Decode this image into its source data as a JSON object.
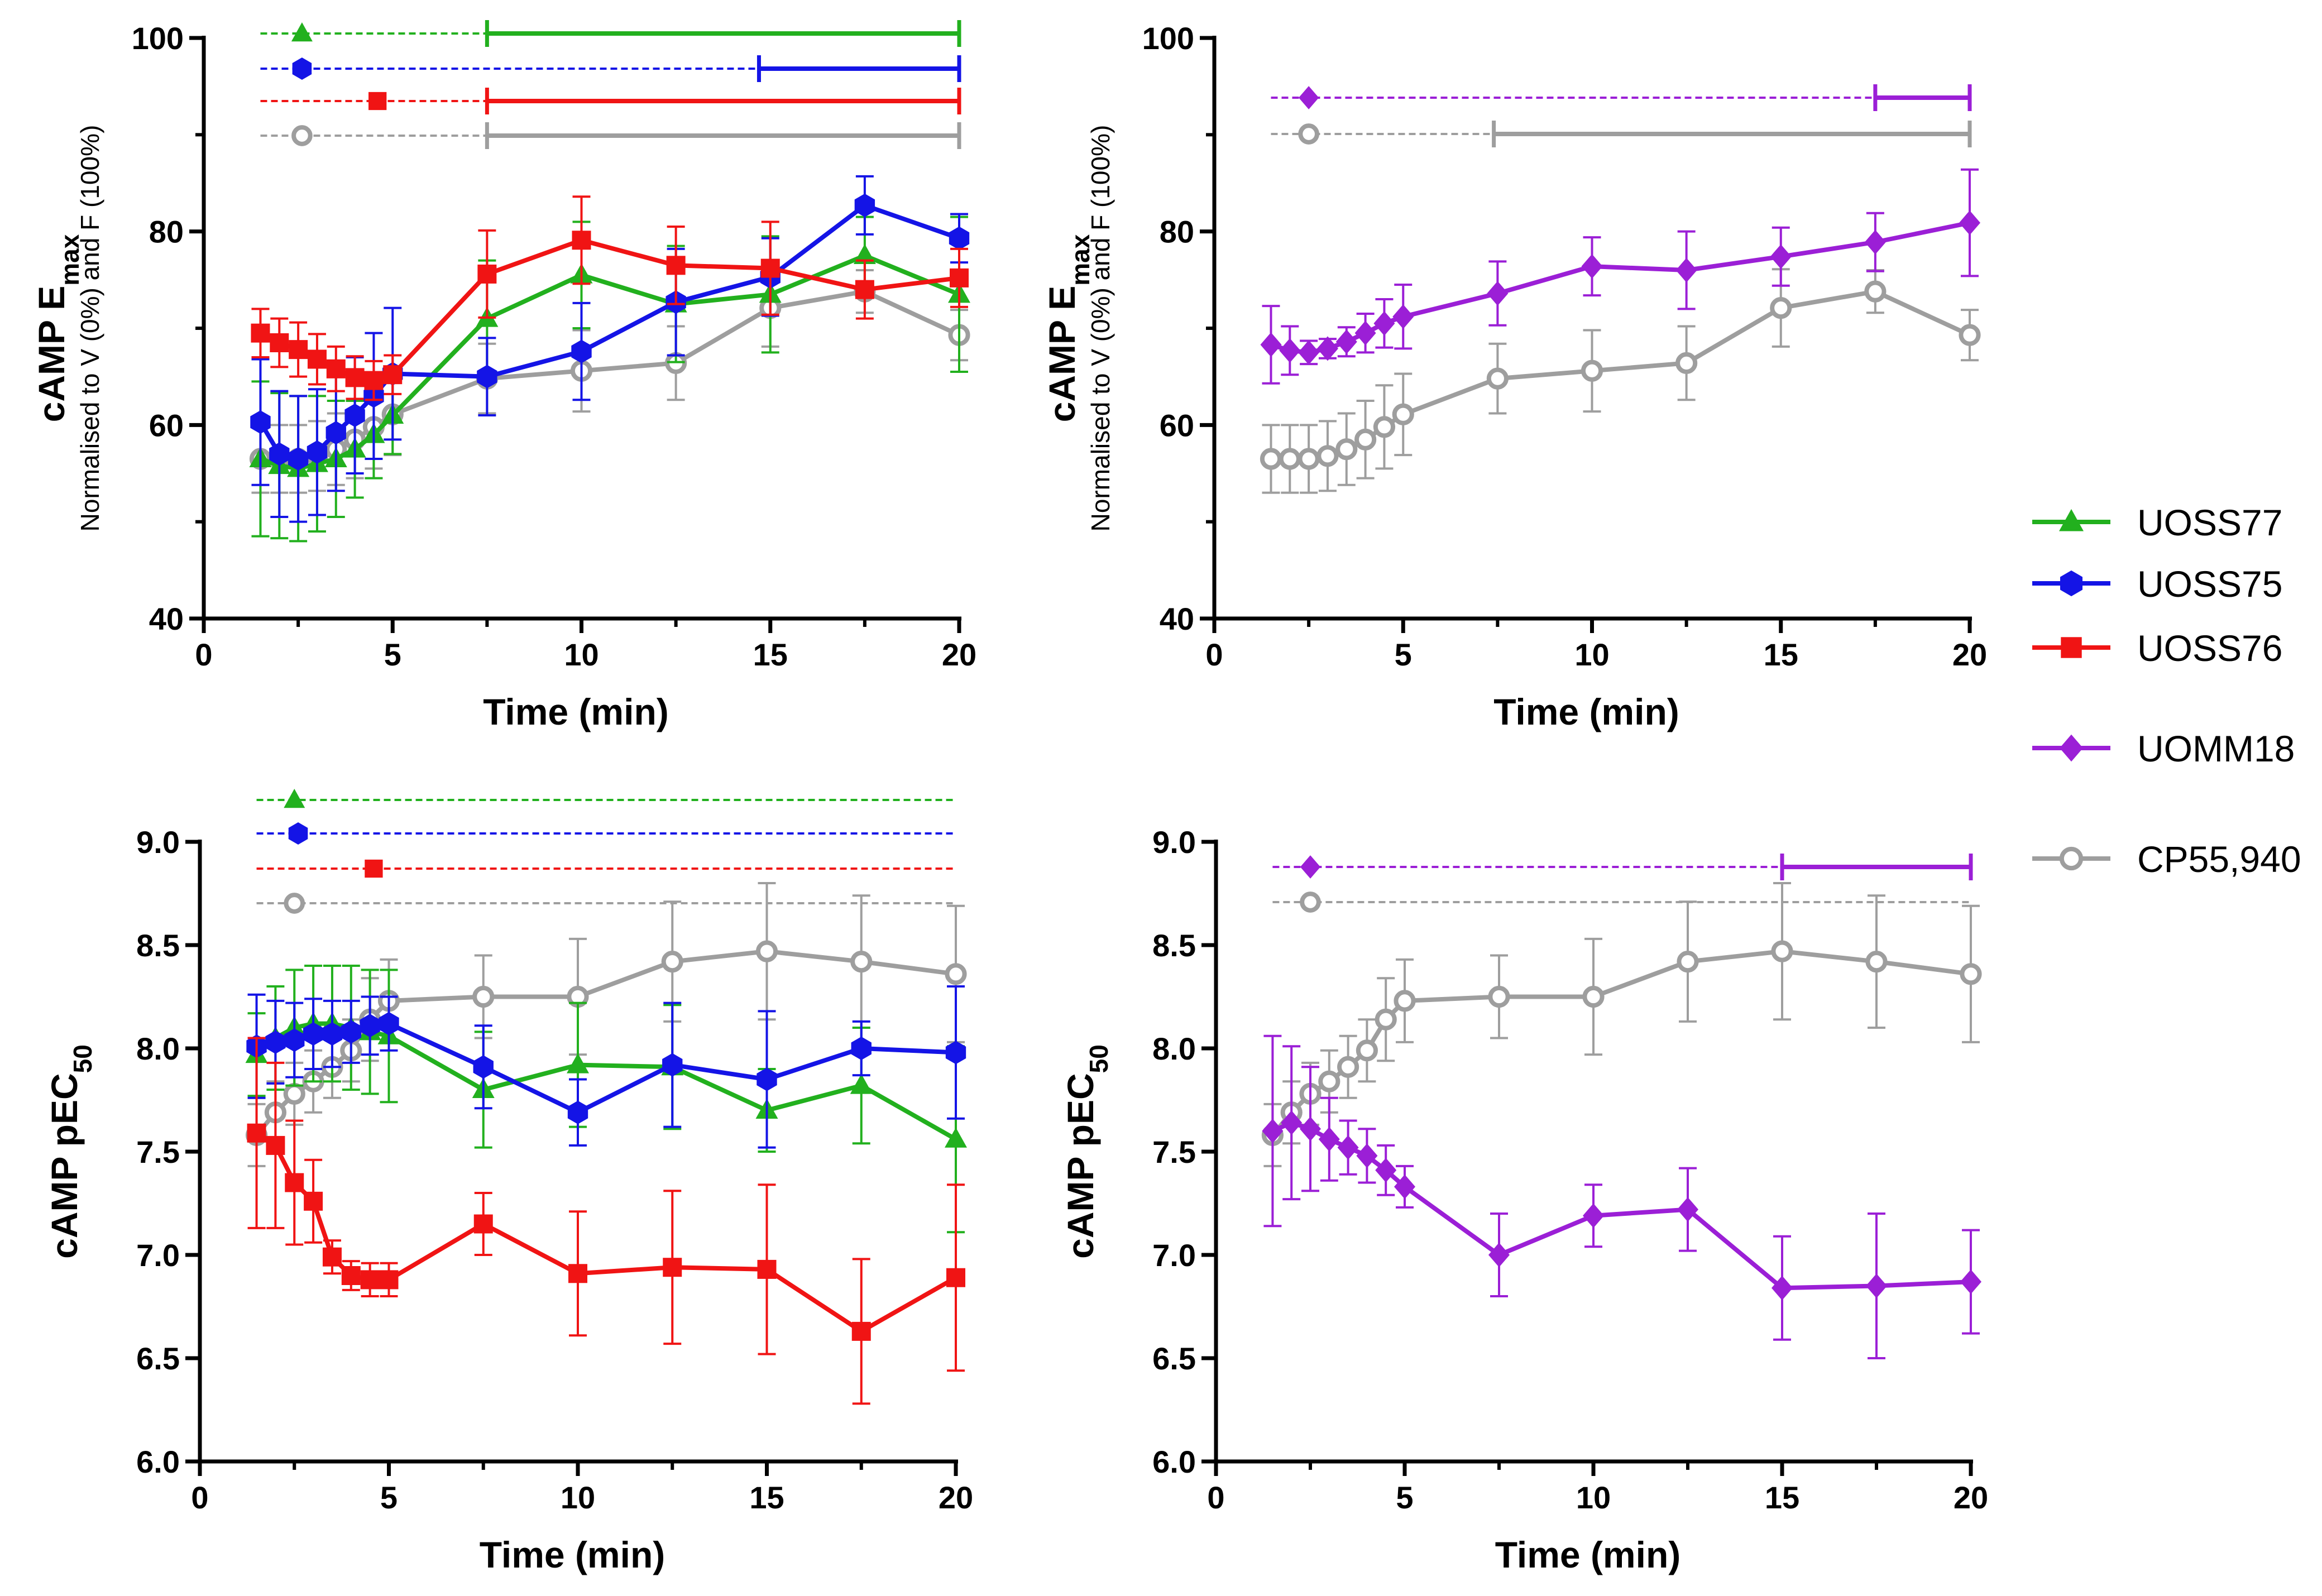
{
  "legend": [
    {
      "name": "UOSS77",
      "color": "#22b01e",
      "marker": "triangle"
    },
    {
      "name": "UOSS75",
      "color": "#1414e6",
      "marker": "hexagon"
    },
    {
      "name": "UOSS76",
      "color": "#f01414",
      "marker": "square"
    },
    {
      "name": "UOMM18",
      "color": "#9b1fd6",
      "marker": "diamond"
    },
    {
      "name": "CP55,940",
      "color": "#9e9e9e",
      "marker": "open-circle"
    }
  ],
  "chart_data": [
    {
      "id": "emax-uoss",
      "type": "line",
      "ylabel_main": "cAMP E",
      "ylabel_sub": "max",
      "ylabel_extra": "Normalised to V (0%) and F (100%)",
      "xlabel": "Time (min)",
      "xlim": [
        0,
        20
      ],
      "ylim": [
        40,
        100
      ],
      "xticks": [
        "0",
        "5",
        "10",
        "15",
        "20"
      ],
      "yticks": [
        "40",
        "60",
        "80",
        "100"
      ],
      "series": [
        {
          "name": "CP55,940",
          "color": "#9e9e9e",
          "marker": "open-circle",
          "x": [
            1.5,
            2,
            2.5,
            3,
            3.5,
            4,
            4.5,
            5,
            7.5,
            10,
            12.5,
            15,
            17.5,
            20
          ],
          "y": [
            56.5,
            56.5,
            56.5,
            56.8,
            57.5,
            58.5,
            59.8,
            61.1,
            64.8,
            65.6,
            66.4,
            72.1,
            73.8,
            69.3
          ],
          "err": [
            3.5,
            3.5,
            3.5,
            3.6,
            3.7,
            4.0,
            4.3,
            4.2,
            3.6,
            4.2,
            3.8,
            4.0,
            2.2,
            2.6
          ]
        },
        {
          "name": "UOSS77",
          "color": "#22b01e",
          "marker": "triangle",
          "x": [
            1.5,
            2,
            2.5,
            3,
            3.5,
            4,
            4.5,
            5,
            7.5,
            10,
            12.5,
            15,
            17.5,
            20
          ],
          "y": [
            56.5,
            55.8,
            55.5,
            56.0,
            56.5,
            57.5,
            59.0,
            61.0,
            71.0,
            75.5,
            72.5,
            73.5,
            77.5,
            73.5
          ],
          "err": [
            8.0,
            7.5,
            7.5,
            7.0,
            6.0,
            5.0,
            4.5,
            4.0,
            6.0,
            5.5,
            6.0,
            6.0,
            4.0,
            8.0
          ]
        },
        {
          "name": "UOSS75",
          "color": "#1414e6",
          "marker": "hexagon",
          "x": [
            1.5,
            2,
            2.5,
            3,
            3.5,
            4,
            4.5,
            5,
            7.5,
            10,
            12.5,
            15,
            17.5,
            20
          ],
          "y": [
            60.3,
            57.0,
            56.5,
            57.2,
            59.2,
            61.0,
            63.0,
            65.3,
            65.0,
            67.6,
            72.7,
            75.3,
            82.7,
            79.3
          ],
          "err": [
            6.5,
            6.5,
            6.5,
            6.5,
            6.0,
            6.0,
            6.5,
            6.8,
            4.0,
            5.0,
            5.5,
            4.0,
            3.0,
            2.5
          ]
        },
        {
          "name": "UOSS76",
          "color": "#f01414",
          "marker": "square",
          "x": [
            1.5,
            2,
            2.5,
            3,
            3.5,
            4,
            4.5,
            5,
            7.5,
            10,
            12.5,
            15,
            17.5,
            20
          ],
          "y": [
            69.5,
            68.5,
            67.8,
            66.8,
            65.8,
            64.9,
            64.6,
            65.2,
            75.6,
            79.1,
            76.5,
            76.2,
            74.0,
            75.2
          ],
          "err": [
            2.5,
            2.5,
            2.8,
            2.6,
            2.3,
            2.2,
            2.0,
            2.0,
            4.5,
            4.5,
            4.0,
            4.8,
            3.0,
            3.0
          ]
        }
      ],
      "significance": [
        {
          "series": "UOSS77",
          "color": "#22b01e",
          "marker": "triangle",
          "marker_x": 2.6,
          "dashed_from": 1.5,
          "solid_from": 7.5,
          "end": 20
        },
        {
          "series": "UOSS75",
          "color": "#1414e6",
          "marker": "hexagon",
          "marker_x": 2.6,
          "dashed_from": 1.5,
          "solid_from": 14.7,
          "end": 20
        },
        {
          "series": "UOSS76",
          "color": "#f01414",
          "marker": "square",
          "marker_x": 4.6,
          "dashed_from": 1.5,
          "solid_from": 7.5,
          "end": 20
        },
        {
          "series": "CP55,940",
          "color": "#9e9e9e",
          "marker": "open-circle",
          "marker_x": 2.6,
          "dashed_from": 1.5,
          "solid_from": 7.5,
          "end": 20
        }
      ]
    },
    {
      "id": "emax-uomm",
      "type": "line",
      "ylabel_main": "cAMP E",
      "ylabel_sub": "max",
      "ylabel_extra": "Normalised to V (0%) and F (100%)",
      "xlabel": "Time (min)",
      "xlim": [
        0,
        20
      ],
      "ylim": [
        40,
        100
      ],
      "xticks": [
        "0",
        "5",
        "10",
        "15",
        "20"
      ],
      "yticks": [
        "40",
        "60",
        "80",
        "100"
      ],
      "series": [
        {
          "name": "CP55,940",
          "color": "#9e9e9e",
          "marker": "open-circle",
          "x": [
            1.5,
            2,
            2.5,
            3,
            3.5,
            4,
            4.5,
            5,
            7.5,
            10,
            12.5,
            15,
            17.5,
            20
          ],
          "y": [
            56.5,
            56.5,
            56.5,
            56.8,
            57.5,
            58.5,
            59.8,
            61.1,
            64.8,
            65.6,
            66.4,
            72.1,
            73.8,
            69.3
          ],
          "err": [
            3.5,
            3.5,
            3.5,
            3.6,
            3.7,
            4.0,
            4.3,
            4.2,
            3.6,
            4.2,
            3.8,
            4.0,
            2.2,
            2.6
          ]
        },
        {
          "name": "UOMM18",
          "color": "#9b1fd6",
          "marker": "diamond",
          "x": [
            1.5,
            2,
            2.5,
            3,
            3.5,
            4,
            4.5,
            5,
            7.5,
            10,
            12.5,
            15,
            17.5,
            20
          ],
          "y": [
            68.3,
            67.7,
            67.5,
            67.9,
            68.6,
            69.5,
            70.5,
            71.2,
            73.6,
            76.4,
            76.0,
            77.4,
            78.9,
            80.9
          ],
          "err": [
            4.0,
            2.5,
            1.2,
            1.0,
            1.5,
            2.0,
            2.5,
            3.3,
            3.3,
            3.0,
            4.0,
            3.0,
            3.0,
            5.5
          ]
        }
      ],
      "significance": [
        {
          "series": "UOMM18",
          "color": "#9b1fd6",
          "marker": "diamond",
          "marker_x": 2.5,
          "dashed_from": 1.5,
          "solid_from": 17.5,
          "end": 20
        },
        {
          "series": "CP55,940",
          "color": "#9e9e9e",
          "marker": "open-circle",
          "marker_x": 2.5,
          "dashed_from": 1.5,
          "solid_from": 7.4,
          "end": 20
        }
      ]
    },
    {
      "id": "pec50-uoss",
      "type": "line",
      "ylabel_main": "cAMP pEC",
      "ylabel_sub": "50",
      "ylabel_extra": "",
      "xlabel": "Time (min)",
      "xlim": [
        0,
        20
      ],
      "ylim": [
        6.0,
        9.0
      ],
      "xticks": [
        "0",
        "5",
        "10",
        "15",
        "20"
      ],
      "yticks": [
        "6.0",
        "6.5",
        "7.0",
        "7.5",
        "8.0",
        "8.5",
        "9.0"
      ],
      "series": [
        {
          "name": "CP55,940",
          "color": "#9e9e9e",
          "marker": "open-circle",
          "x": [
            1.5,
            2,
            2.5,
            3,
            3.5,
            4,
            4.5,
            5,
            7.5,
            10,
            12.5,
            15,
            17.5,
            20
          ],
          "y": [
            7.58,
            7.69,
            7.78,
            7.84,
            7.91,
            7.99,
            8.14,
            8.23,
            8.25,
            8.25,
            8.42,
            8.47,
            8.42,
            8.36
          ],
          "err": [
            0.15,
            0.15,
            0.15,
            0.15,
            0.15,
            0.15,
            0.2,
            0.2,
            0.2,
            0.28,
            0.29,
            0.33,
            0.32,
            0.33
          ]
        },
        {
          "name": "UOSS77",
          "color": "#22b01e",
          "marker": "triangle",
          "x": [
            1.5,
            2,
            2.5,
            3,
            3.5,
            4,
            4.5,
            5,
            7.5,
            10,
            12.5,
            15,
            17.5,
            20
          ],
          "y": [
            7.97,
            8.05,
            8.1,
            8.12,
            8.12,
            8.1,
            8.08,
            8.06,
            7.8,
            7.92,
            7.91,
            7.7,
            7.82,
            7.56
          ],
          "err": [
            0.2,
            0.25,
            0.28,
            0.28,
            0.28,
            0.3,
            0.3,
            0.32,
            0.28,
            0.3,
            0.3,
            0.2,
            0.28,
            0.45
          ]
        },
        {
          "name": "UOSS75",
          "color": "#1414e6",
          "marker": "hexagon",
          "x": [
            1.5,
            2,
            2.5,
            3,
            3.5,
            4,
            4.5,
            5,
            7.5,
            10,
            12.5,
            15,
            17.5,
            20
          ],
          "y": [
            8.01,
            8.03,
            8.04,
            8.07,
            8.07,
            8.08,
            8.11,
            8.12,
            7.91,
            7.69,
            7.92,
            7.85,
            8.0,
            7.98
          ],
          "err": [
            0.25,
            0.2,
            0.18,
            0.17,
            0.16,
            0.15,
            0.14,
            0.13,
            0.2,
            0.16,
            0.3,
            0.33,
            0.13,
            0.32
          ]
        },
        {
          "name": "UOSS76",
          "color": "#f01414",
          "marker": "square",
          "x": [
            1.5,
            2,
            2.5,
            3,
            3.5,
            4,
            4.5,
            5,
            7.5,
            10,
            12.5,
            15,
            17.5,
            20
          ],
          "y": [
            7.59,
            7.53,
            7.35,
            7.26,
            6.99,
            6.9,
            6.88,
            6.88,
            7.15,
            6.91,
            6.94,
            6.93,
            6.63,
            6.89
          ],
          "err": [
            0.46,
            0.4,
            0.3,
            0.2,
            0.08,
            0.07,
            0.08,
            0.08,
            0.15,
            0.3,
            0.37,
            0.41,
            0.35,
            0.45
          ]
        }
      ],
      "significance": [
        {
          "series": "UOSS77",
          "color": "#22b01e",
          "marker": "triangle",
          "marker_x": 2.5,
          "dashed_from": 1.5,
          "solid_from": null,
          "end": 20
        },
        {
          "series": "UOSS75",
          "color": "#1414e6",
          "marker": "hexagon",
          "marker_x": 2.6,
          "dashed_from": 1.5,
          "solid_from": null,
          "end": 20
        },
        {
          "series": "UOSS76",
          "color": "#f01414",
          "marker": "square",
          "marker_x": 4.6,
          "dashed_from": 1.5,
          "solid_from": null,
          "end": 20
        },
        {
          "series": "CP55,940",
          "color": "#9e9e9e",
          "marker": "open-circle",
          "marker_x": 2.5,
          "dashed_from": 1.5,
          "solid_from": null,
          "end": 20
        }
      ]
    },
    {
      "id": "pec50-uomm",
      "type": "line",
      "ylabel_main": "cAMP pEC",
      "ylabel_sub": "50",
      "ylabel_extra": "",
      "xlabel": "Time (min)",
      "xlim": [
        0,
        20
      ],
      "ylim": [
        6.0,
        9.0
      ],
      "xticks": [
        "0",
        "5",
        "10",
        "15",
        "20"
      ],
      "yticks": [
        "6.0",
        "6.5",
        "7.0",
        "7.5",
        "8.0",
        "8.5",
        "9.0"
      ],
      "series": [
        {
          "name": "CP55,940",
          "color": "#9e9e9e",
          "marker": "open-circle",
          "x": [
            1.5,
            2,
            2.5,
            3,
            3.5,
            4,
            4.5,
            5,
            7.5,
            10,
            12.5,
            15,
            17.5,
            20
          ],
          "y": [
            7.58,
            7.69,
            7.78,
            7.84,
            7.91,
            7.99,
            8.14,
            8.23,
            8.25,
            8.25,
            8.42,
            8.47,
            8.42,
            8.36
          ],
          "err": [
            0.15,
            0.15,
            0.15,
            0.15,
            0.15,
            0.15,
            0.2,
            0.2,
            0.2,
            0.28,
            0.29,
            0.33,
            0.32,
            0.33
          ]
        },
        {
          "name": "UOMM18",
          "color": "#9b1fd6",
          "marker": "diamond",
          "x": [
            1.5,
            2,
            2.5,
            3,
            3.5,
            4,
            4.5,
            5,
            7.5,
            10,
            12.5,
            15,
            17.5,
            20
          ],
          "y": [
            7.6,
            7.64,
            7.61,
            7.56,
            7.52,
            7.48,
            7.41,
            7.33,
            7.0,
            7.19,
            7.22,
            6.84,
            6.85,
            6.87
          ],
          "err": [
            0.46,
            0.37,
            0.3,
            0.2,
            0.13,
            0.13,
            0.12,
            0.1,
            0.2,
            0.15,
            0.2,
            0.25,
            0.35,
            0.25
          ]
        }
      ],
      "significance": [
        {
          "series": "UOMM18",
          "color": "#9b1fd6",
          "marker": "diamond",
          "marker_x": 2.5,
          "dashed_from": 1.5,
          "solid_from": 15,
          "end": 20
        },
        {
          "series": "CP55,940",
          "color": "#9e9e9e",
          "marker": "open-circle",
          "marker_x": 2.5,
          "dashed_from": 1.5,
          "solid_from": null,
          "end": 20
        }
      ]
    }
  ]
}
